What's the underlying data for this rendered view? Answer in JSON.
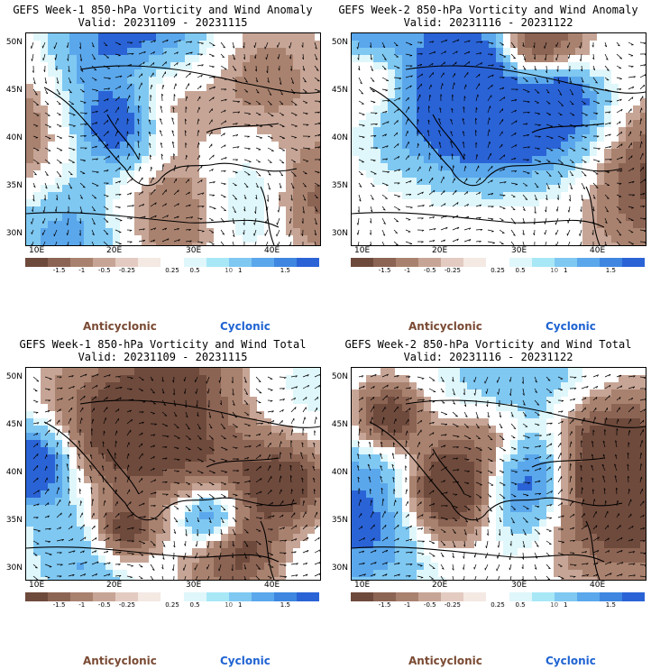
{
  "colorbar": {
    "labels": [
      "-1.5",
      "-1",
      "-0.5",
      "-0.25",
      "0.25",
      "0.5",
      "1",
      "1.5"
    ],
    "scale_mark": "10",
    "colors": [
      "#6e4a3c",
      "#8c6454",
      "#a9826f",
      "#c7a596",
      "#e3cbc1",
      "#f4e9e3",
      "#ffffff",
      "#dff7fb",
      "#a8e8f6",
      "#7fc8f2",
      "#5aa7ec",
      "#3e86e0",
      "#2a63d6"
    ]
  },
  "panels": [
    {
      "title": "GEFS Week-1 850-hPa Vorticity and Wind Anomaly",
      "valid": "Valid: 20231109 - 20231115",
      "legend_anti": "Anticyclonic",
      "legend_cyc": "Cyclonic",
      "lat_labels": [
        "50N",
        "45N",
        "40N",
        "35N",
        "30N"
      ],
      "lon_labels": [
        "10E",
        "20E",
        "30E",
        "40E"
      ]
    },
    {
      "title": "GEFS Week-2 850-hPa Vorticity and Wind Anomaly",
      "valid": "Valid: 20231116 - 20231122",
      "legend_anti": "Anticyclonic",
      "legend_cyc": "Cyclonic",
      "lat_labels": [
        "50N",
        "45N",
        "40N",
        "35N",
        "30N"
      ],
      "lon_labels": [
        "10E",
        "20E",
        "30E",
        "40E"
      ]
    },
    {
      "title": "GEFS Week-1 850-hPa Vorticity and Wind Total",
      "valid": "Valid: 20231109 - 20231115",
      "legend_anti": "Anticyclonic",
      "legend_cyc": "Cyclonic",
      "lat_labels": [
        "50N",
        "45N",
        "40N",
        "35N",
        "30N"
      ],
      "lon_labels": [
        "10E",
        "20E",
        "30E",
        "40E"
      ]
    },
    {
      "title": "GEFS Week-2 850-hPa Vorticity and Wind Total",
      "valid": "Valid: 20231116 - 20231122",
      "legend_anti": "Anticyclonic",
      "legend_cyc": "Cyclonic",
      "lat_labels": [
        "50N",
        "45N",
        "40N",
        "35N",
        "30N"
      ],
      "lon_labels": [
        "10E",
        "20E",
        "30E",
        "40E"
      ]
    }
  ]
}
